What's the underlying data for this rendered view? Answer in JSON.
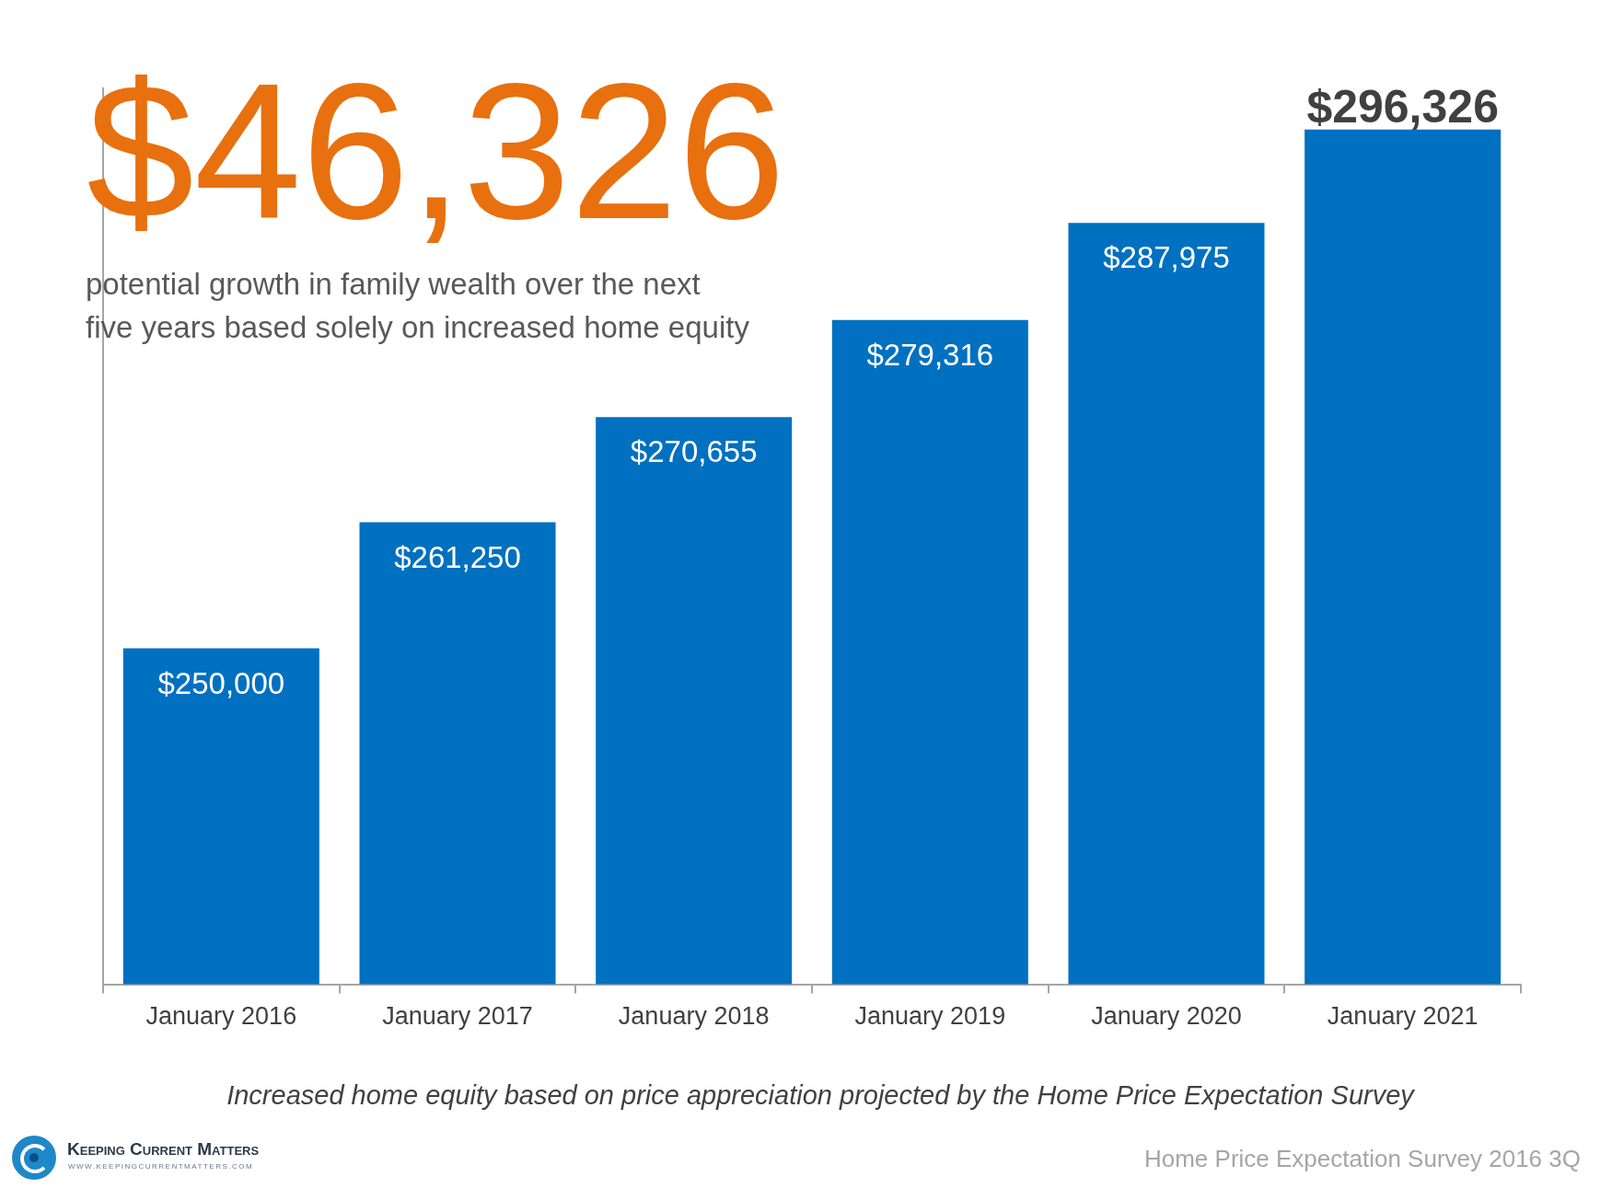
{
  "chart_data": {
    "type": "bar",
    "categories": [
      "January 2016",
      "January 2017",
      "January 2018",
      "January 2019",
      "January 2020",
      "January 2021"
    ],
    "values": [
      250000,
      261250,
      270655,
      279316,
      287975,
      296326
    ],
    "value_labels": [
      "$250,000",
      "$261,250",
      "$270,655",
      "$279,316",
      "$287,975",
      "$296,326"
    ],
    "data_labels": true,
    "color": "#0070c0",
    "ylim": [
      220000,
      300000
    ],
    "grid": false,
    "tick_labels": "x",
    "annotations": {
      "headline": "$46,326",
      "headline_text": [
        "potential growth in family wealth over the next",
        "five years based solely on increased home equity"
      ],
      "footnote": "Increased home equity based on price appreciation projected by the Home Price Expectation Survey",
      "source": "Home Price Expectation Survey 2016 3Q"
    }
  },
  "logo": {
    "name": "Keeping Current Matters",
    "url": "WWW.KEEPINGCURRENTMATTERS.COM"
  }
}
